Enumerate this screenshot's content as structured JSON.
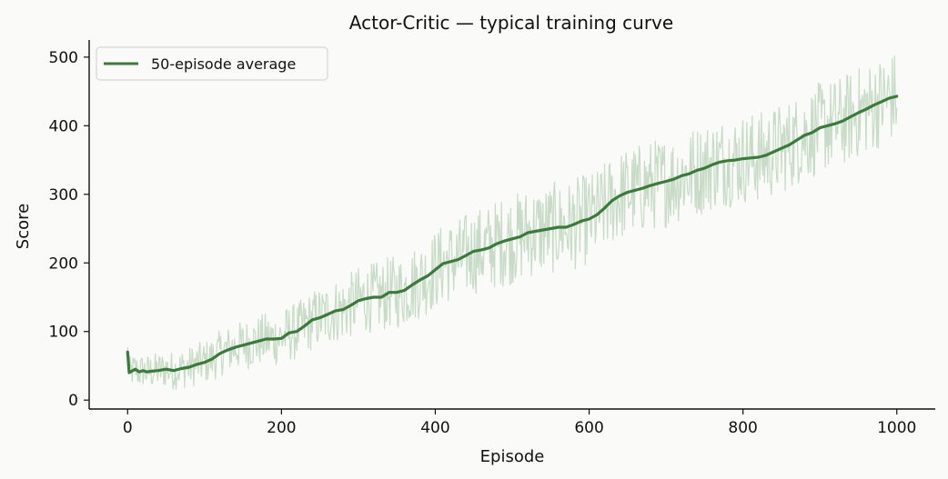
{
  "chart_data": {
    "type": "line",
    "title": "Actor-Critic — typical training curve",
    "xlabel": "Episode",
    "ylabel": "Score",
    "xlim": [
      -50,
      1050
    ],
    "ylim": [
      -13,
      525
    ],
    "xticks": [
      0,
      200,
      400,
      600,
      800,
      1000
    ],
    "yticks": [
      0,
      100,
      200,
      300,
      400,
      500
    ],
    "legend": {
      "placement": "top-left",
      "entries": [
        "50-episode average"
      ]
    },
    "grid": false,
    "colors": {
      "average": "#3a7a3a",
      "raw": "#9cc19c",
      "background": "#fafaf8"
    },
    "series": [
      {
        "name": "50-episode average",
        "style": "bold-line",
        "x": [
          0,
          2,
          10,
          15,
          20,
          25,
          30,
          40,
          50,
          60,
          70,
          80,
          90,
          100,
          110,
          120,
          130,
          140,
          150,
          160,
          170,
          180,
          190,
          200,
          210,
          220,
          230,
          240,
          250,
          260,
          270,
          280,
          290,
          300,
          310,
          320,
          330,
          340,
          350,
          360,
          370,
          380,
          390,
          400,
          410,
          420,
          430,
          440,
          450,
          460,
          470,
          480,
          490,
          500,
          510,
          520,
          530,
          540,
          550,
          560,
          570,
          580,
          590,
          600,
          610,
          620,
          630,
          640,
          650,
          660,
          670,
          680,
          690,
          700,
          710,
          720,
          730,
          740,
          750,
          760,
          770,
          780,
          790,
          800,
          810,
          820,
          830,
          840,
          850,
          860,
          870,
          880,
          890,
          900,
          910,
          920,
          930,
          940,
          950,
          960,
          970,
          980,
          990,
          1000
        ],
        "y": [
          70,
          40,
          45,
          41,
          43,
          41,
          42,
          43,
          45,
          43,
          46,
          48,
          52,
          55,
          60,
          68,
          73,
          77,
          80,
          83,
          86,
          89,
          89,
          90,
          98,
          100,
          108,
          117,
          120,
          125,
          130,
          132,
          138,
          145,
          148,
          150,
          150,
          157,
          157,
          160,
          168,
          175,
          181,
          190,
          199,
          202,
          205,
          211,
          217,
          219,
          222,
          228,
          232,
          235,
          238,
          244,
          246,
          248,
          250,
          252,
          252,
          256,
          261,
          264,
          270,
          280,
          291,
          298,
          303,
          306,
          309,
          313,
          316,
          319,
          322,
          327,
          330,
          335,
          338,
          343,
          347,
          349,
          350,
          352,
          353,
          354,
          357,
          362,
          367,
          372,
          379,
          386,
          390,
          397,
          400,
          403,
          407,
          413,
          419,
          424,
          430,
          435,
          440,
          443
        ]
      },
      {
        "name": "",
        "style": "faint-raw",
        "x_start": 0,
        "x_end": 1000,
        "noise_amplitude": 90,
        "min_value": 10
      }
    ]
  }
}
